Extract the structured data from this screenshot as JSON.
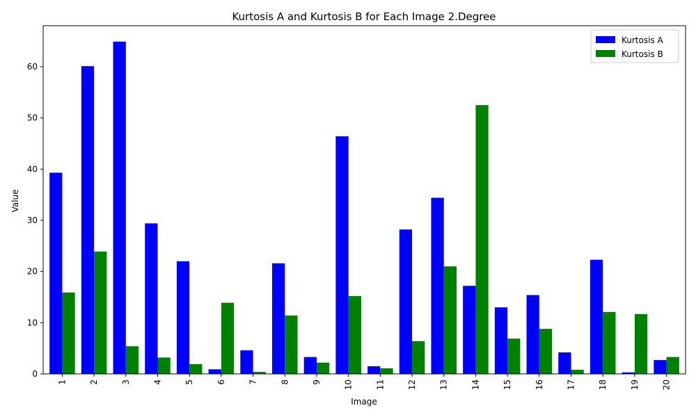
{
  "chart_data": {
    "type": "bar",
    "title": "Kurtosis A and Kurtosis B for Each Image 2.Degree",
    "xlabel": "Image",
    "ylabel": "Value",
    "ylim": [
      0,
      68
    ],
    "yticks": [
      0,
      10,
      20,
      30,
      40,
      50,
      60
    ],
    "categories": [
      "1",
      "2",
      "3",
      "4",
      "5",
      "6",
      "7",
      "8",
      "9",
      "10",
      "11",
      "12",
      "13",
      "14",
      "15",
      "16",
      "17",
      "18",
      "19",
      "20"
    ],
    "series": [
      {
        "name": "Kurtosis A",
        "color": "#0000ff",
        "values": [
          39.3,
          60.1,
          64.9,
          29.4,
          22.0,
          0.9,
          4.6,
          21.6,
          3.3,
          46.4,
          1.5,
          28.2,
          34.4,
          17.2,
          13.0,
          15.4,
          4.2,
          22.3,
          0.3,
          2.7
        ]
      },
      {
        "name": "Kurtosis B",
        "color": "#008000",
        "values": [
          15.9,
          23.9,
          5.4,
          3.2,
          1.9,
          13.9,
          0.4,
          11.4,
          2.2,
          15.2,
          1.1,
          6.4,
          21.0,
          52.5,
          6.9,
          8.8,
          0.8,
          12.1,
          11.7,
          3.3
        ]
      }
    ],
    "legend_position": "top-right",
    "grid": false
  }
}
